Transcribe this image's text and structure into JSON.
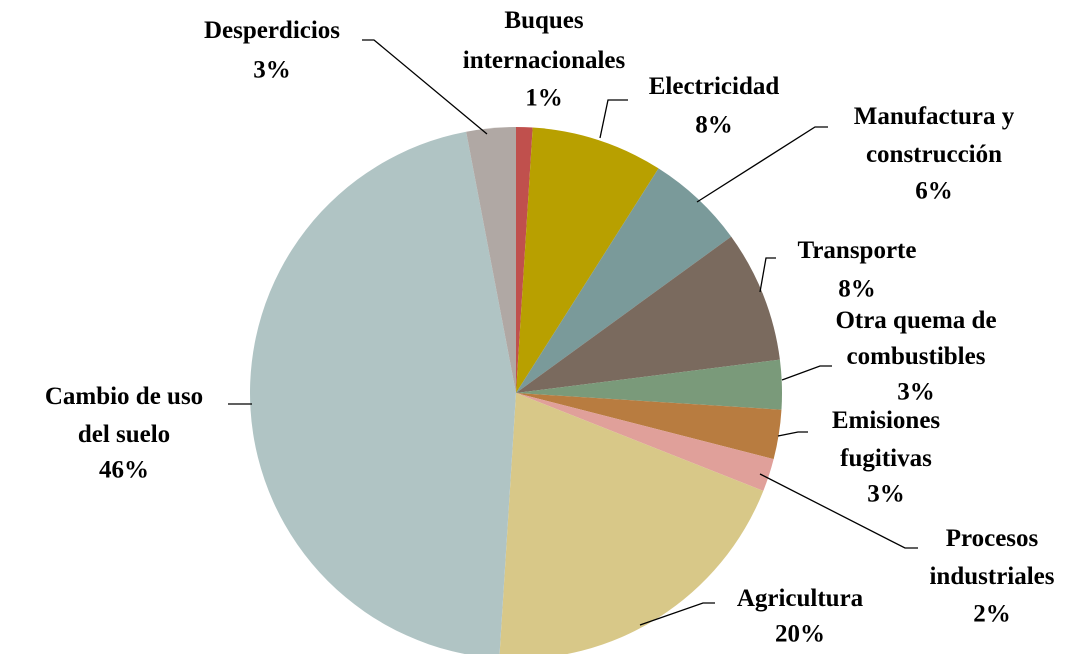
{
  "chart_data": {
    "type": "pie",
    "categories": [
      "Buques internacionales",
      "Electricidad",
      "Manufactura y construcción",
      "Transporte",
      "Otra quema de combustibles",
      "Emisiones fugitivas",
      "Procesos industriales",
      "Agricultura",
      "Cambio de uso del suelo",
      "Desperdicios"
    ],
    "values": [
      1,
      8,
      6,
      8,
      3,
      3,
      2,
      20,
      46,
      3
    ],
    "value_labels": [
      "1%",
      "8%",
      "6%",
      "8%",
      "3%",
      "3%",
      "2%",
      "20%",
      "46%",
      "3%"
    ],
    "colors": [
      "#c0504d",
      "#b8a000",
      "#7a9a9a",
      "#7a6a5e",
      "#7a9a7a",
      "#b87c40",
      "#e0a09a",
      "#d8c888",
      "#b0c4c4",
      "#b0a8a4"
    ]
  }
}
